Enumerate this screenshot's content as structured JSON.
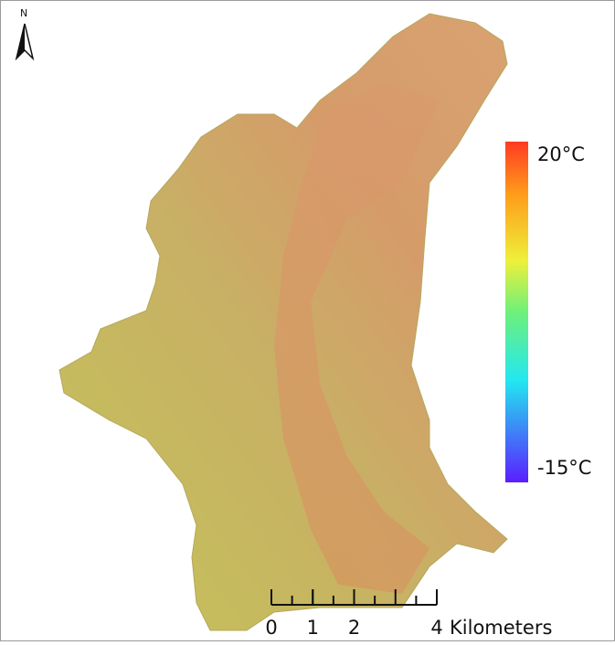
{
  "north_arrow": {
    "label": "N"
  },
  "legend": {
    "labels": [
      {
        "value": 20,
        "label": "20°C"
      },
      {
        "value": -15,
        "label": "-15°C"
      }
    ]
  },
  "scale_bar": {
    "ticks": [
      0,
      1,
      2,
      4
    ],
    "unit": "Kilometers"
  }
}
